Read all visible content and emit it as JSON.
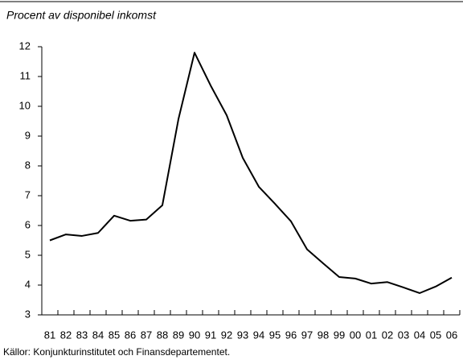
{
  "chart_data": {
    "type": "line",
    "title": "Procent av disponibel inkomst",
    "source": "Källor: Konjunkturinstitutet och Finansdepartementet.",
    "categories": [
      "81",
      "82",
      "83",
      "84",
      "85",
      "86",
      "87",
      "88",
      "89",
      "90",
      "91",
      "92",
      "93",
      "94",
      "95",
      "96",
      "97",
      "98",
      "99",
      "00",
      "01",
      "02",
      "03",
      "04",
      "05",
      "06"
    ],
    "values": [
      5.5,
      5.7,
      5.65,
      5.75,
      6.33,
      6.16,
      6.2,
      6.68,
      9.57,
      11.8,
      10.7,
      9.7,
      8.27,
      7.3,
      6.73,
      6.14,
      5.2,
      4.73,
      4.27,
      4.22,
      4.05,
      4.1,
      3.92,
      3.73,
      3.95,
      4.25
    ],
    "color": "#000000",
    "ylim": [
      3,
      12
    ],
    "yticks": [
      3,
      4,
      5,
      6,
      7,
      8,
      9,
      10,
      11,
      12
    ],
    "grid": false
  }
}
